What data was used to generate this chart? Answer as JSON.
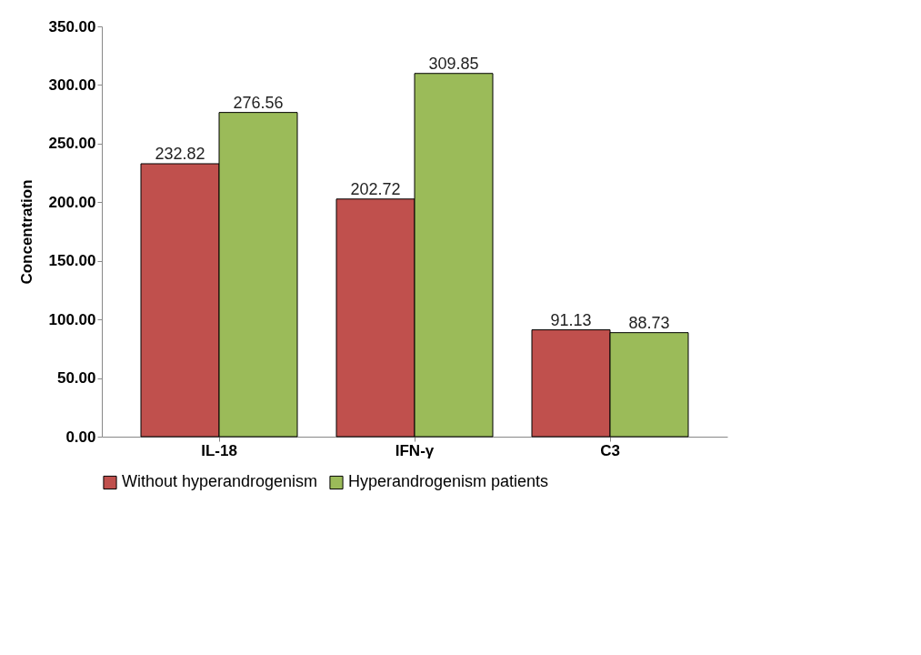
{
  "chart_data": {
    "type": "bar",
    "ylabel": "Concentration",
    "categories": [
      "IL-18",
      "IFN-γ",
      "C3"
    ],
    "series": [
      {
        "name": "Without hyperandrogenism",
        "color": "#c0504d",
        "values": [
          232.82,
          202.72,
          91.13
        ]
      },
      {
        "name": "Hyperandrogenism patients",
        "color": "#9bbb59",
        "values": [
          276.56,
          309.85,
          88.73
        ]
      }
    ],
    "ylim": [
      0,
      350
    ],
    "yticks": [
      {
        "value": 0,
        "label": "0.00"
      },
      {
        "value": 50,
        "label": "50.00"
      },
      {
        "value": 100,
        "label": "100.00"
      },
      {
        "value": 150,
        "label": "150.00"
      },
      {
        "value": 200,
        "label": "200.00"
      },
      {
        "value": 250,
        "label": "250.00"
      },
      {
        "value": 300,
        "label": "300.00"
      },
      {
        "value": 350,
        "label": "350.00"
      }
    ],
    "data_labels": true,
    "legend": "bottom",
    "grid": false
  }
}
